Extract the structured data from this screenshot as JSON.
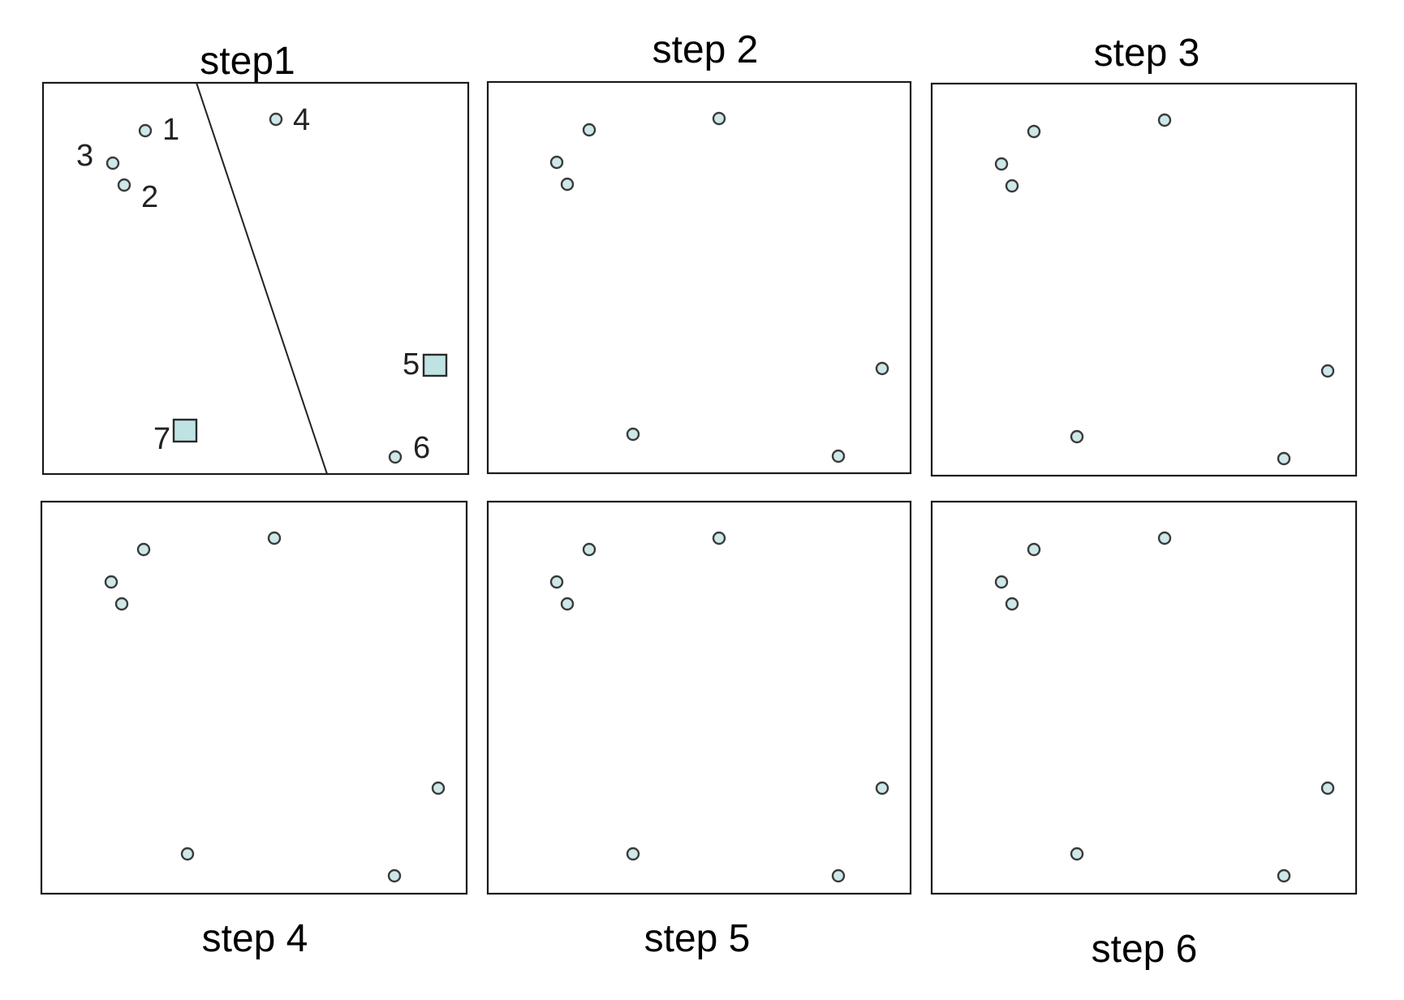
{
  "figure": {
    "colors": {
      "point_fill": "#cde8e8",
      "point_stroke": "#3a3a3a",
      "marker_fill": "#bfe3e3",
      "frame": "#1a1a1a"
    },
    "panels": [
      {
        "title": "step1",
        "labels": [
          "1",
          "2",
          "3",
          "4",
          "5",
          "6",
          "7"
        ],
        "split_line": true,
        "squares": [
          "5",
          "7"
        ]
      },
      {
        "title": "step 2"
      },
      {
        "title": "step 3"
      },
      {
        "title": "step 4"
      },
      {
        "title": "step 5"
      },
      {
        "title": "step 6"
      }
    ]
  }
}
